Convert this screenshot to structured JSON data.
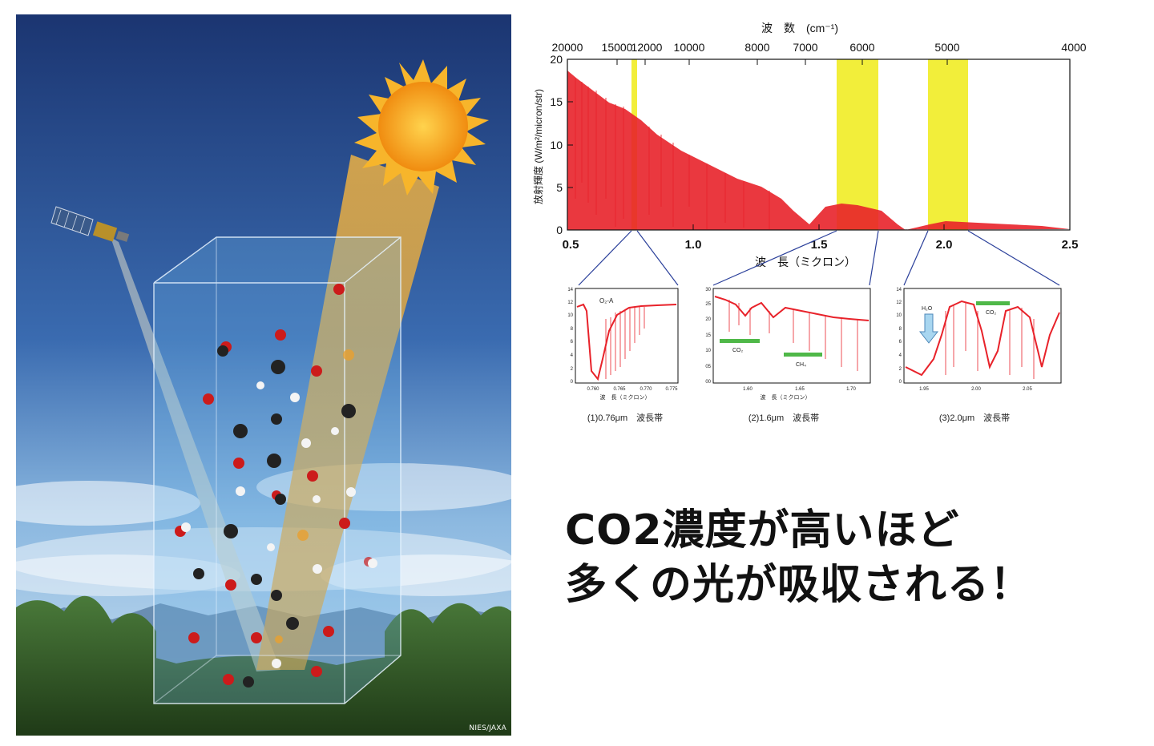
{
  "illustration": {
    "credit": "NIES/JAXA",
    "colors": {
      "sky_top": "#1c3a78",
      "sky_bottom": "#7fb0dc",
      "sun": "#f6a31c",
      "beam": "#f5b33a",
      "box": "#6fb6ea",
      "forest": "#2f5a24"
    }
  },
  "spectrum": {
    "top_axis_title": "波　数　(cm⁻¹)",
    "top_ticks": [
      "20000",
      "15000",
      "12000",
      "10000",
      "8000",
      "7000",
      "6000",
      "5000",
      "4000"
    ],
    "y_label": "放射輝度 (W/m²/micron/str)",
    "y_ticks": [
      "0",
      "5",
      "10",
      "15",
      "20"
    ],
    "x_ticks": [
      "0.5",
      "1.0",
      "1.5",
      "2.0",
      "2.5"
    ],
    "x_label": "波　長（ミクロン）",
    "highlight_color": "#f2ee3a",
    "line_color": "#e8222a"
  },
  "insets": [
    {
      "species": [
        "O₂-A"
      ],
      "x_ticks": [
        "0.760",
        "0.765",
        "0.770",
        "0.775"
      ],
      "y_ticks": [
        "0",
        "2",
        "4",
        "6",
        "8",
        "10",
        "12",
        "14"
      ],
      "x_label": "波　長（ミクロン）",
      "caption": "(1)0.76μm　波長帯"
    },
    {
      "species": [
        "CO₂",
        "CH₄"
      ],
      "x_ticks": [
        "1.60",
        "1.65",
        "1.70"
      ],
      "y_ticks": [
        "00",
        "05",
        "10",
        "15",
        "20",
        "25",
        "30"
      ],
      "x_label": "波　長（ミクロン）",
      "caption": "(2)1.6μm　波長帯"
    },
    {
      "species": [
        "H₂O",
        "CO₂"
      ],
      "x_ticks": [
        "1.95",
        "2.00",
        "2.05"
      ],
      "y_ticks": [
        "0",
        "2",
        "4",
        "6",
        "8",
        "10",
        "12",
        "14"
      ],
      "x_label": "",
      "caption": "(3)2.0μm　波長帯"
    }
  ],
  "headline": {
    "line1": "CO2濃度が高いほど",
    "line2": "多くの光が吸収される！"
  }
}
